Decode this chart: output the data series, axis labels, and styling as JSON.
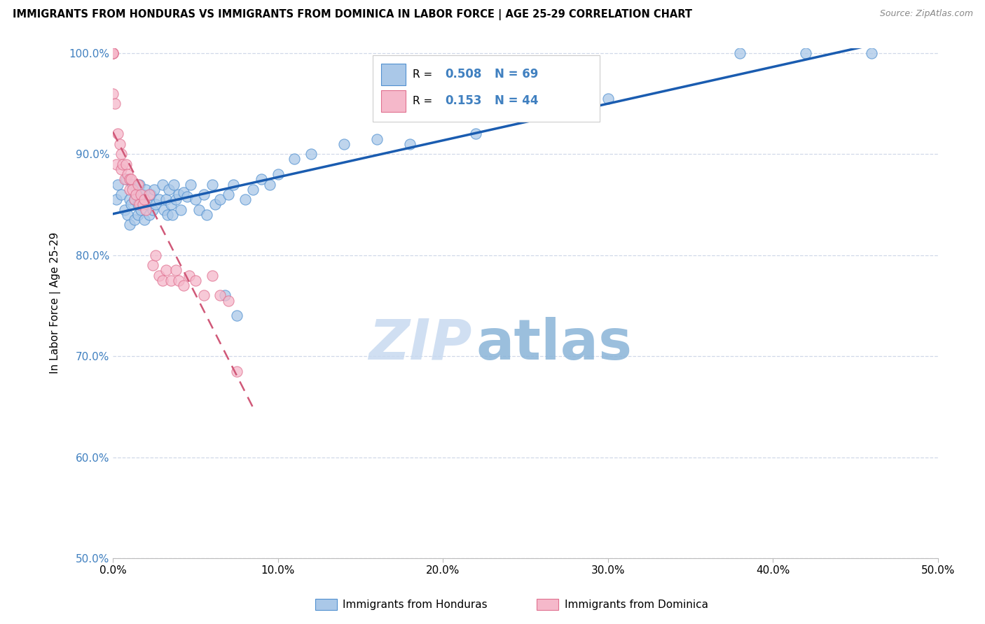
{
  "title": "IMMIGRANTS FROM HONDURAS VS IMMIGRANTS FROM DOMINICA IN LABOR FORCE | AGE 25-29 CORRELATION CHART",
  "source": "Source: ZipAtlas.com",
  "ylabel": "In Labor Force | Age 25-29",
  "xlim": [
    0.0,
    0.5
  ],
  "ylim": [
    0.5,
    1.005
  ],
  "xticks": [
    0.0,
    0.1,
    0.2,
    0.3,
    0.4,
    0.5
  ],
  "yticks": [
    0.5,
    0.6,
    0.7,
    0.8,
    0.9,
    1.0
  ],
  "xtick_labels": [
    "0.0%",
    "10.0%",
    "20.0%",
    "30.0%",
    "40.0%",
    "50.0%"
  ],
  "ytick_labels": [
    "50.0%",
    "60.0%",
    "70.0%",
    "80.0%",
    "90.0%",
    "100.0%"
  ],
  "legend_label_blue": "Immigrants from Honduras",
  "legend_label_pink": "Immigrants from Dominica",
  "R_blue": 0.508,
  "N_blue": 69,
  "R_pink": 0.153,
  "N_pink": 44,
  "blue_color": "#aac8e8",
  "pink_color": "#f5b8ca",
  "blue_edge_color": "#5090d0",
  "pink_edge_color": "#e07090",
  "blue_line_color": "#1a5cb0",
  "pink_line_color": "#d05878",
  "marker_size": 120,
  "blue_points_x": [
    0.002,
    0.003,
    0.005,
    0.007,
    0.008,
    0.009,
    0.01,
    0.01,
    0.011,
    0.012,
    0.013,
    0.013,
    0.014,
    0.015,
    0.015,
    0.016,
    0.017,
    0.017,
    0.018,
    0.019,
    0.02,
    0.021,
    0.022,
    0.023,
    0.024,
    0.025,
    0.026,
    0.028,
    0.03,
    0.031,
    0.032,
    0.033,
    0.034,
    0.035,
    0.036,
    0.037,
    0.038,
    0.04,
    0.041,
    0.043,
    0.045,
    0.047,
    0.05,
    0.052,
    0.055,
    0.057,
    0.06,
    0.062,
    0.065,
    0.068,
    0.07,
    0.073,
    0.075,
    0.08,
    0.085,
    0.09,
    0.095,
    0.1,
    0.11,
    0.12,
    0.14,
    0.16,
    0.18,
    0.22,
    0.26,
    0.3,
    0.38,
    0.42,
    0.46
  ],
  "blue_points_y": [
    0.855,
    0.87,
    0.86,
    0.845,
    0.875,
    0.84,
    0.855,
    0.83,
    0.85,
    0.87,
    0.855,
    0.835,
    0.865,
    0.85,
    0.84,
    0.87,
    0.855,
    0.845,
    0.86,
    0.835,
    0.865,
    0.85,
    0.84,
    0.86,
    0.845,
    0.865,
    0.85,
    0.855,
    0.87,
    0.845,
    0.855,
    0.84,
    0.865,
    0.85,
    0.84,
    0.87,
    0.855,
    0.86,
    0.845,
    0.862,
    0.858,
    0.87,
    0.855,
    0.845,
    0.86,
    0.84,
    0.87,
    0.85,
    0.855,
    0.76,
    0.86,
    0.87,
    0.74,
    0.855,
    0.865,
    0.875,
    0.87,
    0.88,
    0.895,
    0.9,
    0.91,
    0.915,
    0.91,
    0.92,
    0.94,
    0.955,
    1.0,
    1.0,
    1.0
  ],
  "pink_points_x": [
    0.0,
    0.0,
    0.0,
    0.0,
    0.0,
    0.001,
    0.002,
    0.003,
    0.004,
    0.005,
    0.005,
    0.006,
    0.007,
    0.008,
    0.009,
    0.01,
    0.01,
    0.011,
    0.012,
    0.013,
    0.014,
    0.015,
    0.016,
    0.017,
    0.018,
    0.019,
    0.02,
    0.022,
    0.024,
    0.026,
    0.028,
    0.03,
    0.032,
    0.035,
    0.038,
    0.04,
    0.043,
    0.046,
    0.05,
    0.055,
    0.06,
    0.065,
    0.07,
    0.075
  ],
  "pink_points_y": [
    1.0,
    1.0,
    1.0,
    1.0,
    0.96,
    0.95,
    0.89,
    0.92,
    0.91,
    0.9,
    0.885,
    0.89,
    0.875,
    0.89,
    0.88,
    0.875,
    0.865,
    0.875,
    0.865,
    0.855,
    0.86,
    0.87,
    0.85,
    0.86,
    0.85,
    0.855,
    0.845,
    0.86,
    0.79,
    0.8,
    0.78,
    0.775,
    0.785,
    0.775,
    0.785,
    0.775,
    0.77,
    0.78,
    0.775,
    0.76,
    0.78,
    0.76,
    0.755,
    0.685
  ],
  "watermark_zip": "ZIP",
  "watermark_atlas": "atlas",
  "background_color": "#ffffff",
  "grid_color": "#d0d8e8"
}
